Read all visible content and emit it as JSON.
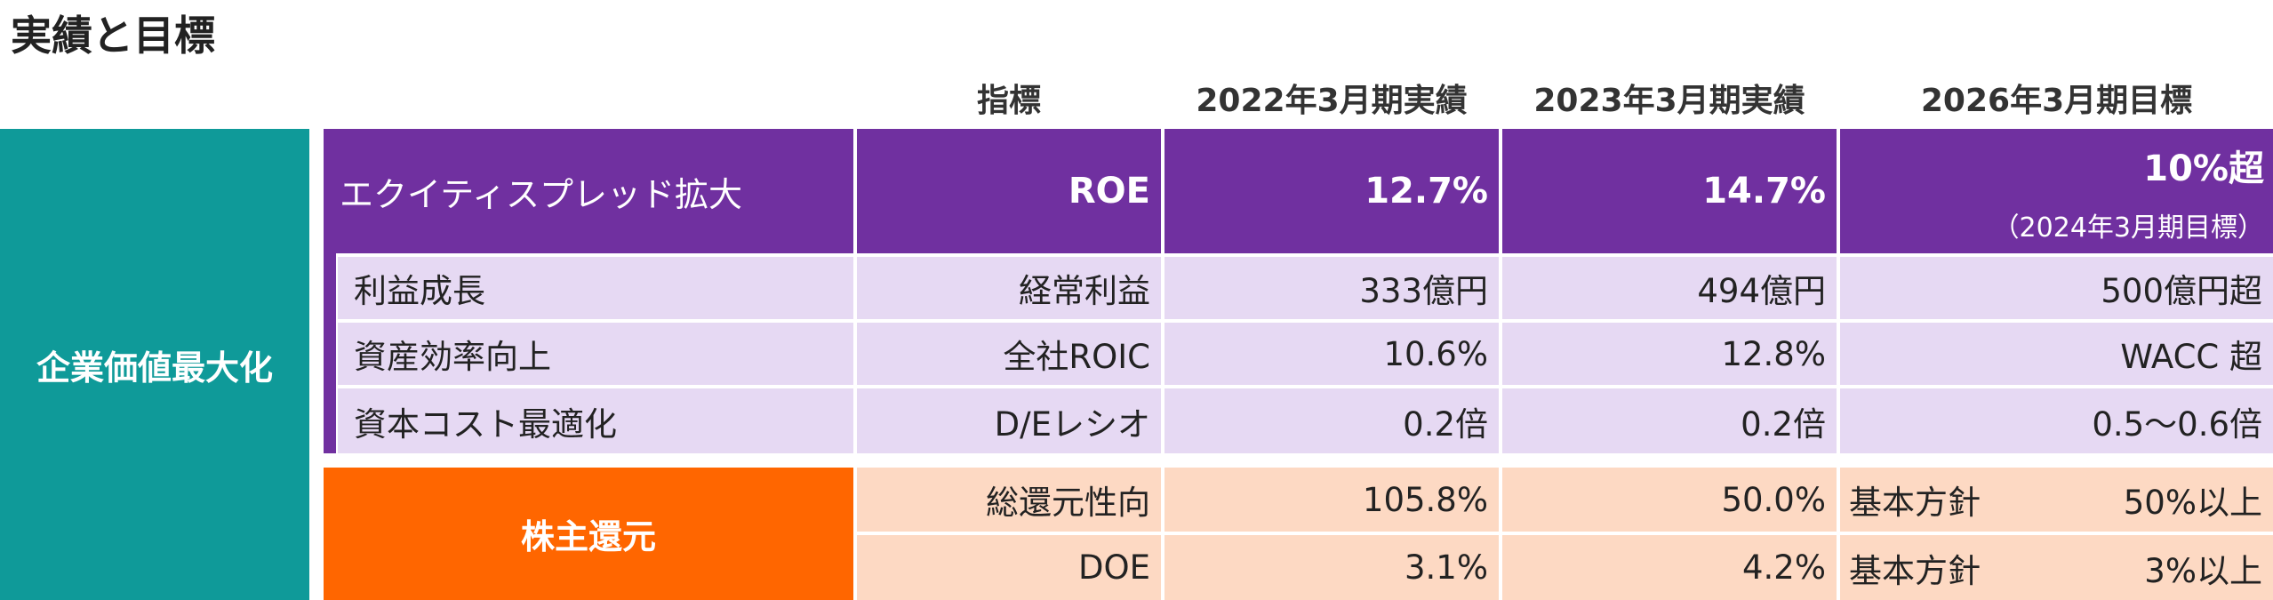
{
  "title": "実績と目標",
  "headers": {
    "indicator": "指標",
    "fy2022": "2022年3月期実績",
    "fy2023": "2023年3月期実績",
    "fy2026": "2026年3月期目標"
  },
  "left_label": "企業価値最大化",
  "roe_row": {
    "label": "エクイティスプレッド拡大",
    "indicator": "ROE",
    "fy2022": "12.7%",
    "fy2023": "14.7%",
    "fy2026": "10%超",
    "fy2026_note": "（2024年3月期目標）"
  },
  "rows": [
    {
      "label": "利益成長",
      "indicator": "経常利益",
      "fy2022": "333億円",
      "fy2023": "494億円",
      "fy2026": "500億円超"
    },
    {
      "label": "資産効率向上",
      "indicator": "全社ROIC",
      "fy2022": "10.6%",
      "fy2023": "12.8%",
      "fy2026": "WACC 超"
    },
    {
      "label": "資本コスト最適化",
      "indicator": "D/Eレシオ",
      "fy2022": "0.2倍",
      "fy2023": "0.2倍",
      "fy2026": "0.5〜0.6倍"
    }
  ],
  "shareholder": {
    "label": "株主還元",
    "rows": [
      {
        "indicator": "総還元性向",
        "fy2022": "105.8%",
        "fy2023": "50.0%",
        "policy": "基本方針",
        "fy2026": "50%以上"
      },
      {
        "indicator": "DOE",
        "fy2022": "3.1%",
        "fy2023": "4.2%",
        "policy": "基本方針",
        "fy2026": "3%以上"
      }
    ]
  }
}
